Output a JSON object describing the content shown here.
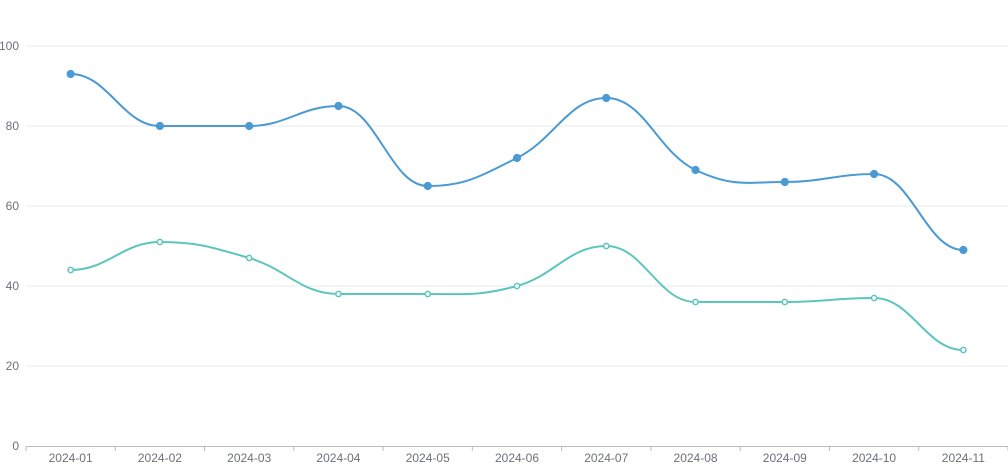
{
  "chart_data": {
    "type": "line",
    "smooth": true,
    "title": "",
    "xlabel": "",
    "ylabel": "",
    "categories": [
      "2024-01",
      "2024-02",
      "2024-03",
      "2024-04",
      "2024-05",
      "2024-06",
      "2024-07",
      "2024-08",
      "2024-09",
      "2024-10",
      "2024-11"
    ],
    "ylim": [
      0,
      100
    ],
    "yticks": [
      0,
      20,
      40,
      60,
      80,
      100
    ],
    "grid": true,
    "legend": "none",
    "series": [
      {
        "color": "#4a9ad4",
        "marker": "filled-circle",
        "values": [
          93,
          80,
          80,
          85,
          65,
          72,
          87,
          69,
          66,
          68,
          49
        ]
      },
      {
        "color": "#5cc6bd",
        "marker": "hollow-circle",
        "values": [
          44,
          51,
          47,
          38,
          38,
          40,
          50,
          36,
          36,
          37,
          24
        ]
      }
    ]
  }
}
